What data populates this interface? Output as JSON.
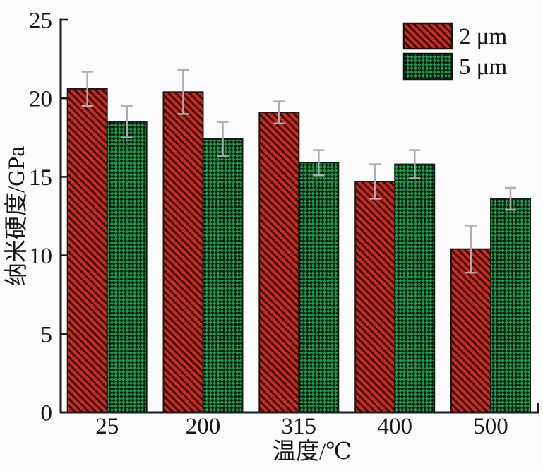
{
  "figure": {
    "background": "#fcfcfc",
    "axis_color": "#1c1c1c",
    "error_bar_color": "#adadad"
  },
  "chart_data": {
    "type": "bar",
    "title": "",
    "xlabel": "温度/℃",
    "ylabel": "纳米硬度/GPa",
    "categories": [
      "25",
      "200",
      "315",
      "400",
      "500"
    ],
    "series": [
      {
        "name": "2 μm",
        "values": [
          20.6,
          20.4,
          19.1,
          14.7,
          10.4
        ],
        "errors": [
          1.1,
          1.4,
          0.7,
          1.1,
          1.5
        ],
        "color": "#d2291f",
        "pattern": "diagonal-hatch",
        "pattern_dark": "#2b0b07"
      },
      {
        "name": "5 μm",
        "values": [
          18.5,
          17.4,
          15.9,
          15.8,
          13.6
        ],
        "errors": [
          1.0,
          1.1,
          0.8,
          0.9,
          0.7
        ],
        "color": "#13a24a",
        "pattern": "checkerboard",
        "pattern_dark": "#0a130c"
      }
    ],
    "ylim": [
      0,
      25
    ],
    "yticks": [
      0,
      5,
      10,
      15,
      20,
      25
    ],
    "grid": false,
    "legend_position": "top-right",
    "error_bars": true
  }
}
